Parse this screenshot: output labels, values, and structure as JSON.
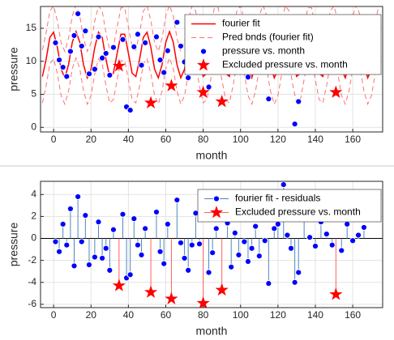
{
  "chart_data": [
    {
      "type": "fit",
      "xlabel": "month",
      "ylabel": "pressure",
      "xlim": [
        -7,
        176
      ],
      "xticks": [
        0,
        20,
        40,
        60,
        80,
        100,
        120,
        140,
        160
      ],
      "ylim": [
        -0.7,
        18.3
      ],
      "yticks": [
        0,
        5,
        10,
        15
      ],
      "grid": true,
      "legend": "northeast",
      "series": [
        {
          "name": "fourier fit",
          "style": "line",
          "color": "#ff0000",
          "x": [
            -6,
            -4,
            -2,
            0,
            2,
            4,
            6,
            8,
            10,
            12,
            14,
            16,
            18,
            20,
            22,
            24,
            26,
            28,
            30,
            32,
            34,
            36,
            38,
            40,
            42,
            44,
            46,
            48,
            50,
            52,
            54,
            56,
            58,
            60,
            62,
            64,
            66,
            68,
            70,
            72,
            74,
            76,
            78,
            80,
            82,
            84,
            86,
            88,
            90,
            92,
            94,
            96,
            98,
            100,
            102,
            104,
            106,
            108,
            110,
            112,
            114,
            116,
            118,
            120,
            122,
            124,
            126,
            128,
            130,
            132,
            134,
            136,
            138,
            140,
            142,
            144,
            146,
            148,
            150,
            152,
            154,
            156,
            158,
            160,
            162,
            164,
            166,
            168,
            170,
            172,
            174
          ],
          "values": [
            7.7,
            10.3,
            13.6,
            14.4,
            12.1,
            8.8,
            7.5,
            9.5,
            12.9,
            14.5,
            12.9,
            9.5,
            7.5,
            8.8,
            12.1,
            14.4,
            13.6,
            10.3,
            7.7,
            8.2,
            11.2,
            14.1,
            14.1,
            11.2,
            8.2,
            7.7,
            10.3,
            13.6,
            14.4,
            12.1,
            8.8,
            7.5,
            9.5,
            12.9,
            14.5,
            12.9,
            9.5,
            7.5,
            8.8,
            12.1,
            14.4,
            13.6,
            10.3,
            7.7,
            8.2,
            11.2,
            14.1,
            14.1,
            11.2,
            8.2,
            7.7,
            10.3,
            13.6,
            14.4,
            12.1,
            8.8,
            7.5,
            9.5,
            12.9,
            14.5,
            12.9,
            9.5,
            7.5,
            8.8,
            12.1,
            14.4,
            13.6,
            10.3,
            7.7,
            8.2,
            11.2,
            14.1,
            14.1,
            11.2,
            8.2,
            7.7,
            10.3,
            13.6,
            14.4,
            12.1,
            8.8,
            7.5,
            9.5,
            12.9,
            14.5,
            12.9,
            9.5,
            7.5,
            8.8,
            12.1,
            14.4
          ]
        },
        {
          "name": "Pred bnds (fourier fit)",
          "style": "band",
          "color": "#ff7070",
          "x": [
            -6,
            -4,
            -2,
            0,
            2,
            4,
            6,
            8,
            10,
            12,
            14,
            16,
            18,
            20,
            22,
            24,
            26,
            28,
            30,
            32,
            34,
            36,
            38,
            40,
            42,
            44,
            46,
            48,
            50,
            52,
            54,
            56,
            58,
            60,
            62,
            64,
            66,
            68,
            70,
            72,
            74,
            76,
            78,
            80,
            82,
            84,
            86,
            88,
            90,
            92,
            94,
            96,
            98,
            100,
            102,
            104,
            106,
            108,
            110,
            112,
            114,
            116,
            118,
            120,
            122,
            124,
            126,
            128,
            130,
            132,
            134,
            136,
            138,
            140,
            142,
            144,
            146,
            148,
            150,
            152,
            154,
            156,
            158,
            160,
            162,
            164,
            166,
            168,
            170,
            172,
            174
          ],
          "values": [
            11.7,
            14.3,
            17.6,
            18.4,
            16.1,
            12.8,
            11.5,
            13.5,
            16.9,
            18.5,
            16.9,
            13.5,
            11.5,
            12.8,
            16.1,
            18.4,
            17.6,
            14.3,
            11.7,
            12.2,
            15.2,
            18.1,
            18.1,
            15.2,
            12.2,
            11.7,
            14.3,
            17.6,
            18.4,
            16.1,
            12.8,
            11.5,
            13.5,
            16.9,
            18.5,
            16.9,
            13.5,
            11.5,
            12.8,
            16.1,
            18.4,
            17.6,
            14.3,
            11.7,
            12.2,
            15.2,
            18.1,
            18.1,
            15.2,
            12.2,
            11.7,
            14.3,
            17.6,
            18.4,
            16.1,
            12.8,
            11.5,
            13.5,
            16.9,
            18.5,
            16.9,
            13.5,
            11.5,
            12.8,
            16.1,
            18.4,
            17.6,
            14.3,
            11.7,
            12.2,
            15.2,
            18.1,
            18.1,
            15.2,
            12.2,
            11.7,
            14.3,
            17.6,
            18.4,
            16.1,
            12.8,
            11.5,
            13.5,
            16.9,
            18.5,
            16.9,
            13.5,
            11.5,
            12.8,
            16.1,
            18.4
          ],
          "lower_values": [
            3.7,
            6.3,
            9.6,
            10.4,
            8.1,
            4.8,
            3.5,
            5.5,
            8.9,
            10.5,
            8.9,
            5.5,
            3.5,
            4.8,
            8.1,
            10.4,
            9.6,
            6.3,
            3.7,
            4.2,
            7.2,
            10.1,
            10.1,
            7.2,
            4.2,
            3.7,
            6.3,
            9.6,
            10.4,
            8.1,
            4.8,
            3.5,
            5.5,
            8.9,
            10.5,
            8.9,
            5.5,
            3.5,
            4.8,
            8.1,
            10.4,
            9.6,
            6.3,
            3.7,
            4.2,
            7.2,
            10.1,
            10.1,
            7.2,
            4.2,
            3.7,
            6.3,
            9.6,
            10.4,
            8.1,
            4.8,
            3.5,
            5.5,
            8.9,
            10.5,
            8.9,
            5.5,
            3.5,
            4.8,
            8.1,
            10.4,
            9.6,
            6.3,
            3.7,
            4.2,
            7.2,
            10.1,
            10.1,
            7.2,
            4.2,
            3.7,
            6.3,
            9.6,
            10.4,
            8.1,
            4.8,
            3.5,
            5.5,
            8.9,
            10.5,
            8.9,
            5.5,
            3.5,
            4.8,
            8.1,
            10.4
          ]
        },
        {
          "name": "pressure vs. month",
          "style": "marker",
          "marker": "circle",
          "color": "#0000ff",
          "x": [
            1,
            3,
            5,
            7,
            9,
            11,
            13,
            15,
            17,
            19,
            22,
            24,
            26,
            28,
            30,
            32,
            37,
            39,
            41,
            43,
            45,
            47,
            49,
            55,
            57,
            59,
            61,
            66,
            68,
            70,
            72,
            74,
            76,
            78,
            83,
            85,
            87,
            93,
            95,
            97,
            99,
            102,
            104,
            106,
            108,
            110,
            113,
            115,
            118,
            120,
            123,
            125,
            127,
            129,
            131,
            134,
            137,
            140,
            143,
            146,
            149,
            154,
            157,
            160,
            163,
            166
          ],
          "values": [
            12.8,
            10.2,
            9.1,
            7.7,
            11.5,
            13.9,
            17.2,
            12.3,
            14.6,
            8.1,
            8.8,
            13.7,
            10.5,
            11.2,
            7.9,
            12.1,
            13.3,
            3.1,
            2.6,
            12.2,
            14.1,
            9.4,
            12.8,
            13.7,
            10.2,
            8.3,
            11.6,
            15.9,
            12.3,
            9.9,
            7.5,
            10.6,
            13.4,
            12.1,
            6.1,
            8.8,
            11.9,
            13.3,
            8.5,
            11.4,
            10.2,
            11.1,
            7.6,
            8.9,
            12.3,
            9.3,
            10.8,
            4.3,
            11.6,
            12.3,
            15.9,
            11.1,
            10.1,
            0.5,
            3.9,
            12.6,
            11.1,
            10.3,
            12.8,
            11.4,
            9.6,
            9.4,
            12.2,
            10.8,
            11.3,
            11.9
          ]
        },
        {
          "name": "Excluded pressure vs. month",
          "style": "marker",
          "marker": "star",
          "color": "#ff0000",
          "x": [
            35,
            52,
            63,
            80,
            90,
            151
          ],
          "values": [
            9.3,
            3.7,
            6.3,
            5.3,
            3.9,
            5.3
          ]
        }
      ]
    },
    {
      "type": "stem",
      "xlabel": "month",
      "ylabel": "pressure",
      "xlim": [
        -7,
        176
      ],
      "xticks": [
        0,
        20,
        40,
        60,
        80,
        100,
        120,
        140,
        160
      ],
      "ylim": [
        -6.3,
        5.2
      ],
      "yticks": [
        -6,
        -4,
        -2,
        0,
        2,
        4
      ],
      "grid": true,
      "legend": "northeast",
      "series": [
        {
          "name": "fourier fit - residuals",
          "marker": "circle",
          "color": "#0000ff",
          "stem_color": "#4f86c0",
          "x": [
            1,
            3,
            5,
            7,
            9,
            11,
            13,
            15,
            17,
            19,
            22,
            24,
            26,
            28,
            30,
            32,
            37,
            39,
            41,
            43,
            45,
            47,
            49,
            55,
            57,
            59,
            61,
            66,
            68,
            70,
            72,
            74,
            76,
            78,
            83,
            85,
            87,
            93,
            95,
            97,
            99,
            102,
            104,
            106,
            108,
            110,
            113,
            115,
            118,
            120,
            123,
            125,
            127,
            129,
            131,
            134,
            137,
            140,
            143,
            146,
            149,
            154,
            157,
            160,
            163,
            166
          ],
          "values": [
            -0.3,
            -1.2,
            1.3,
            -0.6,
            2.7,
            -2.5,
            3.8,
            -0.3,
            2.1,
            -2.4,
            -1.7,
            1.5,
            -1.8,
            -0.9,
            -2.9,
            0.8,
            2.2,
            -3.6,
            -3.3,
            1.8,
            -0.6,
            -1.5,
            0.9,
            2.4,
            -1.2,
            -2.3,
            1.3,
            3.5,
            -0.4,
            -1.8,
            -2.9,
            -0.6,
            2.3,
            -0.5,
            -3.1,
            -1.3,
            0.9,
            1.4,
            -2.6,
            0.5,
            -1.5,
            -0.3,
            -2.1,
            -0.9,
            1.1,
            -1.6,
            -0.2,
            -4.1,
            0.9,
            1.3,
            4.9,
            0.3,
            -0.9,
            -4.0,
            -3.1,
            1.8,
            0.1,
            -0.7,
            1.5,
            0.4,
            -0.6,
            -1.1,
            1.3,
            -0.2,
            0.3,
            1.0
          ]
        },
        {
          "name": "Excluded pressure vs. month",
          "marker": "star",
          "color": "#ff0000",
          "stem_color": "#ff6060",
          "x": [
            35,
            52,
            63,
            80,
            90,
            151
          ],
          "values": [
            -4.3,
            -4.9,
            -5.5,
            -5.9,
            -4.7,
            -5.1
          ]
        }
      ]
    }
  ]
}
